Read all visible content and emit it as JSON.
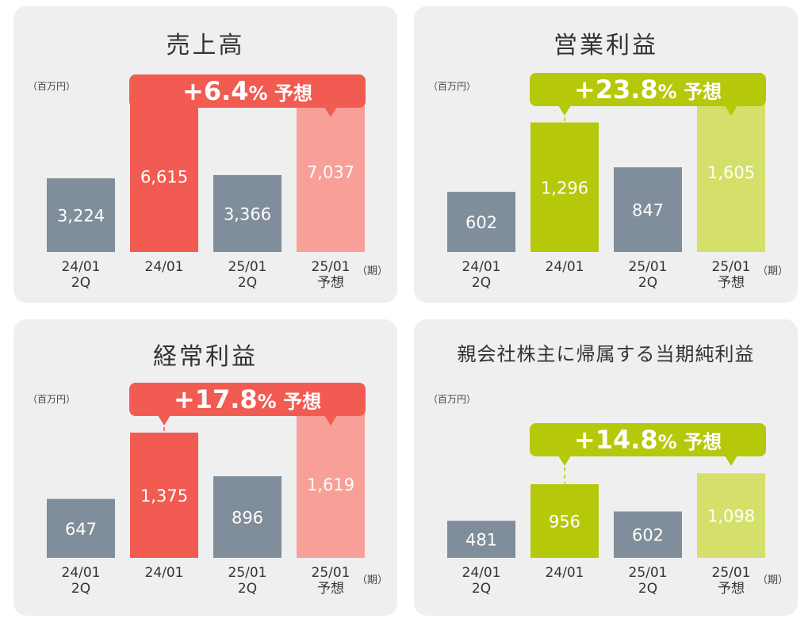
{
  "colors": {
    "grey": "#808d9a",
    "red": "#f15b52",
    "red_light": "#f8a098",
    "green": "#b5c80a",
    "green_light": "#d4e06a"
  },
  "chart_data": [
    {
      "type": "bar",
      "title": "売上高",
      "unit": "（百万円）",
      "period_label": "（期）",
      "categories": [
        "24/01\n2Q",
        "24/01",
        "25/01\n2Q",
        "25/01\n予想"
      ],
      "values": [
        3224,
        6615,
        3366,
        7037
      ],
      "value_labels": [
        "3,224",
        "6,615",
        "3,366",
        "7,037"
      ],
      "colors": [
        "grey",
        "red",
        "grey",
        "red_light"
      ],
      "ylim": [
        0,
        7700
      ],
      "callout": {
        "pct": "+6.4",
        "suffix": "% 予想",
        "color": "red"
      }
    },
    {
      "type": "bar",
      "title": "営業利益",
      "unit": "（百万円）",
      "period_label": "（期）",
      "categories": [
        "24/01\n2Q",
        "24/01",
        "25/01\n2Q",
        "25/01\n予想"
      ],
      "values": [
        602,
        1296,
        847,
        1605
      ],
      "value_labels": [
        "602",
        "1,296",
        "847",
        "1,605"
      ],
      "colors": [
        "grey",
        "green",
        "grey",
        "green_light"
      ],
      "ylim": [
        0,
        1760
      ],
      "callout": {
        "pct": "+23.8",
        "suffix": "% 予想",
        "color": "green"
      }
    },
    {
      "type": "bar",
      "title": "経常利益",
      "unit": "（百万円）",
      "period_label": "（期）",
      "categories": [
        "24/01\n2Q",
        "24/01",
        "25/01\n2Q",
        "25/01\n予想"
      ],
      "values": [
        647,
        1375,
        896,
        1619
      ],
      "value_labels": [
        "647",
        "1,375",
        "896",
        "1,619"
      ],
      "colors": [
        "grey",
        "red",
        "grey",
        "red_light"
      ],
      "ylim": [
        0,
        1775
      ],
      "callout": {
        "pct": "+17.8",
        "suffix": "% 予想",
        "color": "red"
      }
    },
    {
      "type": "bar",
      "title": "親会社株主に帰属する当期純利益",
      "unit": "（百万円）",
      "period_label": "（期）",
      "categories": [
        "24/01\n2Q",
        "24/01",
        "25/01\n2Q",
        "25/01\n予想"
      ],
      "values": [
        481,
        956,
        602,
        1098
      ],
      "value_labels": [
        "481",
        "956",
        "602",
        "1,098"
      ],
      "colors": [
        "grey",
        "green",
        "grey",
        "green_light"
      ],
      "ylim": [
        0,
        1595
      ],
      "callout": {
        "pct": "+14.8",
        "suffix": "% 予想",
        "color": "green"
      }
    }
  ]
}
